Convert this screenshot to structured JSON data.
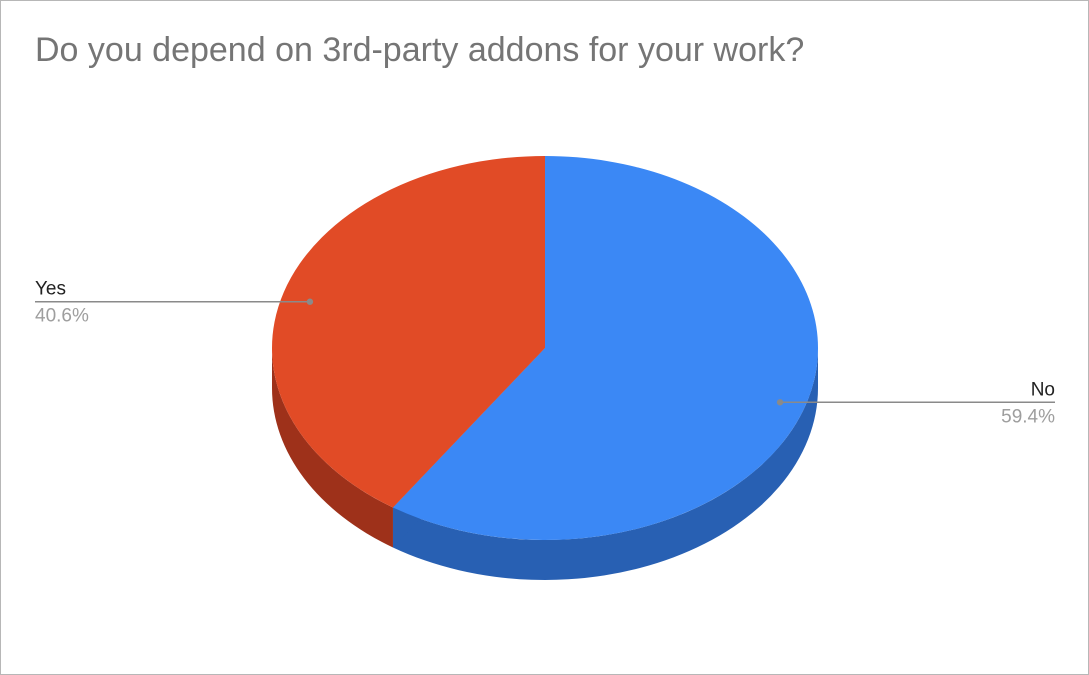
{
  "chart_data": {
    "type": "pie",
    "title": "Do you depend on 3rd-party addons for your work?",
    "three_d": true,
    "slices": [
      {
        "label": "No",
        "value": 59.4,
        "value_label": "59.4%",
        "color": "#3b88f5",
        "side_color": "#2860b3"
      },
      {
        "label": "Yes",
        "value": 40.6,
        "value_label": "40.6%",
        "color": "#e14b26",
        "side_color": "#9e311a"
      }
    ],
    "legend": "labeled"
  }
}
